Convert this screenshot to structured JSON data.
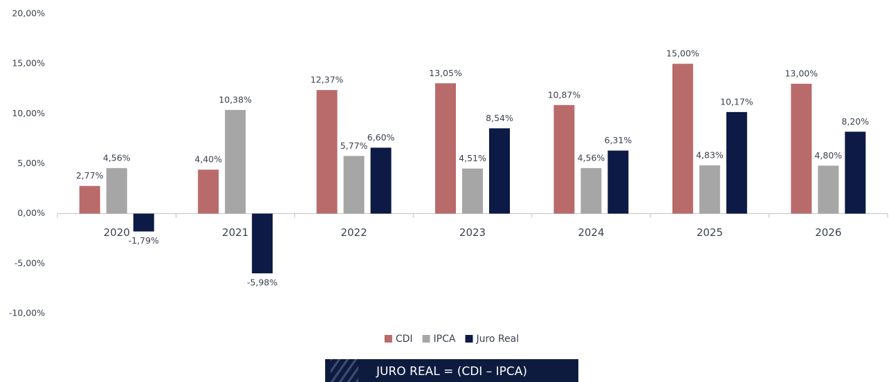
{
  "chart_data": {
    "type": "bar",
    "categories": [
      "2020",
      "2021",
      "2022",
      "2023",
      "2024",
      "2025",
      "2026"
    ],
    "series": [
      {
        "name": "CDI",
        "color": "#b96b6b",
        "values": [
          2.77,
          4.4,
          12.37,
          13.05,
          10.87,
          15.0,
          13.0
        ],
        "value_labels": [
          "2,77%",
          "4,40%",
          "12,37%",
          "13,05%",
          "10,87%",
          "15,00%",
          "13,00%"
        ]
      },
      {
        "name": "IPCA",
        "color": "#a6a6a6",
        "values": [
          4.56,
          10.38,
          5.77,
          4.51,
          4.56,
          4.83,
          4.8
        ],
        "value_labels": [
          "4,56%",
          "10,38%",
          "5,77%",
          "4,51%",
          "4,56%",
          "4,83%",
          "4,80%"
        ]
      },
      {
        "name": "Juro Real",
        "color": "#0c1a45",
        "values": [
          -1.79,
          -5.98,
          6.6,
          8.54,
          6.31,
          10.17,
          8.2
        ],
        "value_labels": [
          "-1,79%",
          "-5,98%",
          "6,60%",
          "8,54%",
          "6,31%",
          "10,17%",
          "8,20%"
        ]
      }
    ],
    "ylim": [
      -10,
      20
    ],
    "yticks": [
      {
        "value": -10,
        "label": "-10,00%"
      },
      {
        "value": -5,
        "label": "-5,00%"
      },
      {
        "value": 0,
        "label": "0,00%"
      },
      {
        "value": 5,
        "label": "5,00%"
      },
      {
        "value": 10,
        "label": "10,00%"
      },
      {
        "value": 15,
        "label": "15,00%"
      },
      {
        "value": 20,
        "label": "20,00%"
      }
    ],
    "grid": false,
    "legend": "bottom",
    "annotation": "JURO REAL = (CDI – IPCA)"
  }
}
